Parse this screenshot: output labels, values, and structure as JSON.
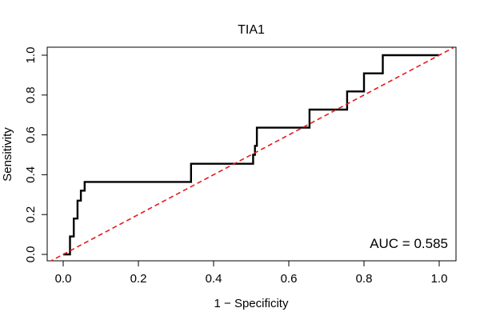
{
  "chart_data": {
    "type": "line",
    "title": "TIA1",
    "xlabel": "1 − Specificity",
    "ylabel": "Sensitivity",
    "xlim": [
      0,
      1
    ],
    "ylim": [
      0,
      1
    ],
    "x_ticks": [
      "0.0",
      "0.2",
      "0.4",
      "0.6",
      "0.8",
      "1.0"
    ],
    "y_ticks": [
      "0.0",
      "0.2",
      "0.4",
      "0.6",
      "0.8",
      "1.0"
    ],
    "grid": false,
    "annotation": "AUC = 0.585",
    "series": [
      {
        "style": "solid",
        "color": "#000000",
        "x": [
          0.0,
          0.018,
          0.018,
          0.028,
          0.028,
          0.038,
          0.038,
          0.047,
          0.047,
          0.057,
          0.057,
          0.34,
          0.34,
          0.505,
          0.505,
          0.51,
          0.51,
          0.515,
          0.515,
          0.655,
          0.655,
          0.755,
          0.755,
          0.8,
          0.8,
          0.85,
          0.85,
          1.0
        ],
        "y": [
          0.0,
          0.0,
          0.09,
          0.09,
          0.18,
          0.18,
          0.27,
          0.27,
          0.32,
          0.32,
          0.364,
          0.364,
          0.455,
          0.455,
          0.5,
          0.5,
          0.545,
          0.545,
          0.636,
          0.636,
          0.727,
          0.727,
          0.818,
          0.818,
          0.909,
          0.909,
          1.0,
          1.0
        ]
      },
      {
        "style": "dashed",
        "color": "#e41a1c",
        "x": [
          0,
          1
        ],
        "y": [
          0,
          1
        ]
      }
    ]
  }
}
